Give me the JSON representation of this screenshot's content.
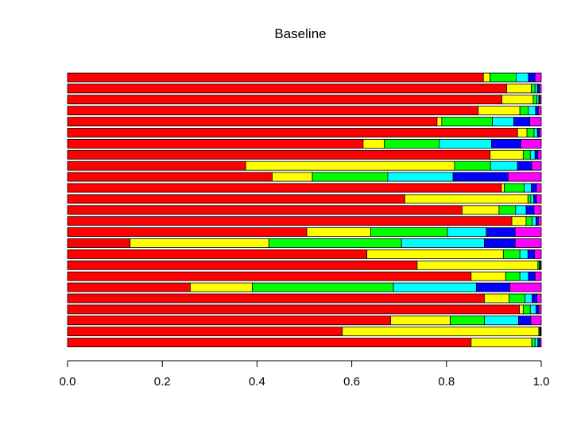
{
  "chart_data": {
    "type": "bar",
    "orientation": "horizontal",
    "stacked": true,
    "title": "Baseline",
    "xlabel": "",
    "ylabel": "",
    "xlim": [
      0,
      1
    ],
    "x_ticks": [
      "0.0",
      "0.2",
      "0.4",
      "0.6",
      "0.8",
      "1.0"
    ],
    "grid": false,
    "legend": "none",
    "segment_colors": [
      "#ff0000",
      "#ffff00",
      "#00ff00",
      "#00ffff",
      "#0000ff",
      "#ff00ff"
    ],
    "rows_top_to_bottom": [
      [
        0.878,
        0.014,
        0.055,
        0.026,
        0.014,
        0.013
      ],
      [
        0.927,
        0.052,
        0.008,
        0.005,
        0.004,
        0.004
      ],
      [
        0.917,
        0.066,
        0.008,
        0.004,
        0.002,
        0.003
      ],
      [
        0.867,
        0.088,
        0.018,
        0.015,
        0.006,
        0.006
      ],
      [
        0.78,
        0.01,
        0.107,
        0.045,
        0.034,
        0.024
      ],
      [
        0.95,
        0.02,
        0.015,
        0.007,
        0.004,
        0.004
      ],
      [
        0.624,
        0.045,
        0.116,
        0.11,
        0.062,
        0.043
      ],
      [
        0.892,
        0.07,
        0.015,
        0.01,
        0.006,
        0.007
      ],
      [
        0.376,
        0.441,
        0.076,
        0.057,
        0.03,
        0.02
      ],
      [
        0.432,
        0.085,
        0.159,
        0.138,
        0.116,
        0.07
      ],
      [
        0.916,
        0.006,
        0.042,
        0.015,
        0.011,
        0.01
      ],
      [
        0.712,
        0.26,
        0.006,
        0.006,
        0.006,
        0.01
      ],
      [
        0.833,
        0.078,
        0.035,
        0.022,
        0.017,
        0.015
      ],
      [
        0.938,
        0.03,
        0.013,
        0.008,
        0.005,
        0.006
      ],
      [
        0.505,
        0.135,
        0.162,
        0.082,
        0.061,
        0.055
      ],
      [
        0.132,
        0.293,
        0.28,
        0.175,
        0.065,
        0.055
      ],
      [
        0.632,
        0.288,
        0.035,
        0.017,
        0.014,
        0.014
      ],
      [
        0.738,
        0.255,
        0.003,
        0.002,
        0.001,
        0.001
      ],
      [
        0.852,
        0.073,
        0.03,
        0.018,
        0.014,
        0.013
      ],
      [
        0.259,
        0.131,
        0.298,
        0.175,
        0.071,
        0.066
      ],
      [
        0.88,
        0.052,
        0.034,
        0.015,
        0.01,
        0.009
      ],
      [
        0.954,
        0.008,
        0.015,
        0.012,
        0.006,
        0.005
      ],
      [
        0.682,
        0.126,
        0.072,
        0.072,
        0.026,
        0.022
      ],
      [
        0.58,
        0.415,
        0.002,
        0.001,
        0.001,
        0.001
      ],
      [
        0.852,
        0.128,
        0.007,
        0.006,
        0.004,
        0.003
      ]
    ]
  }
}
